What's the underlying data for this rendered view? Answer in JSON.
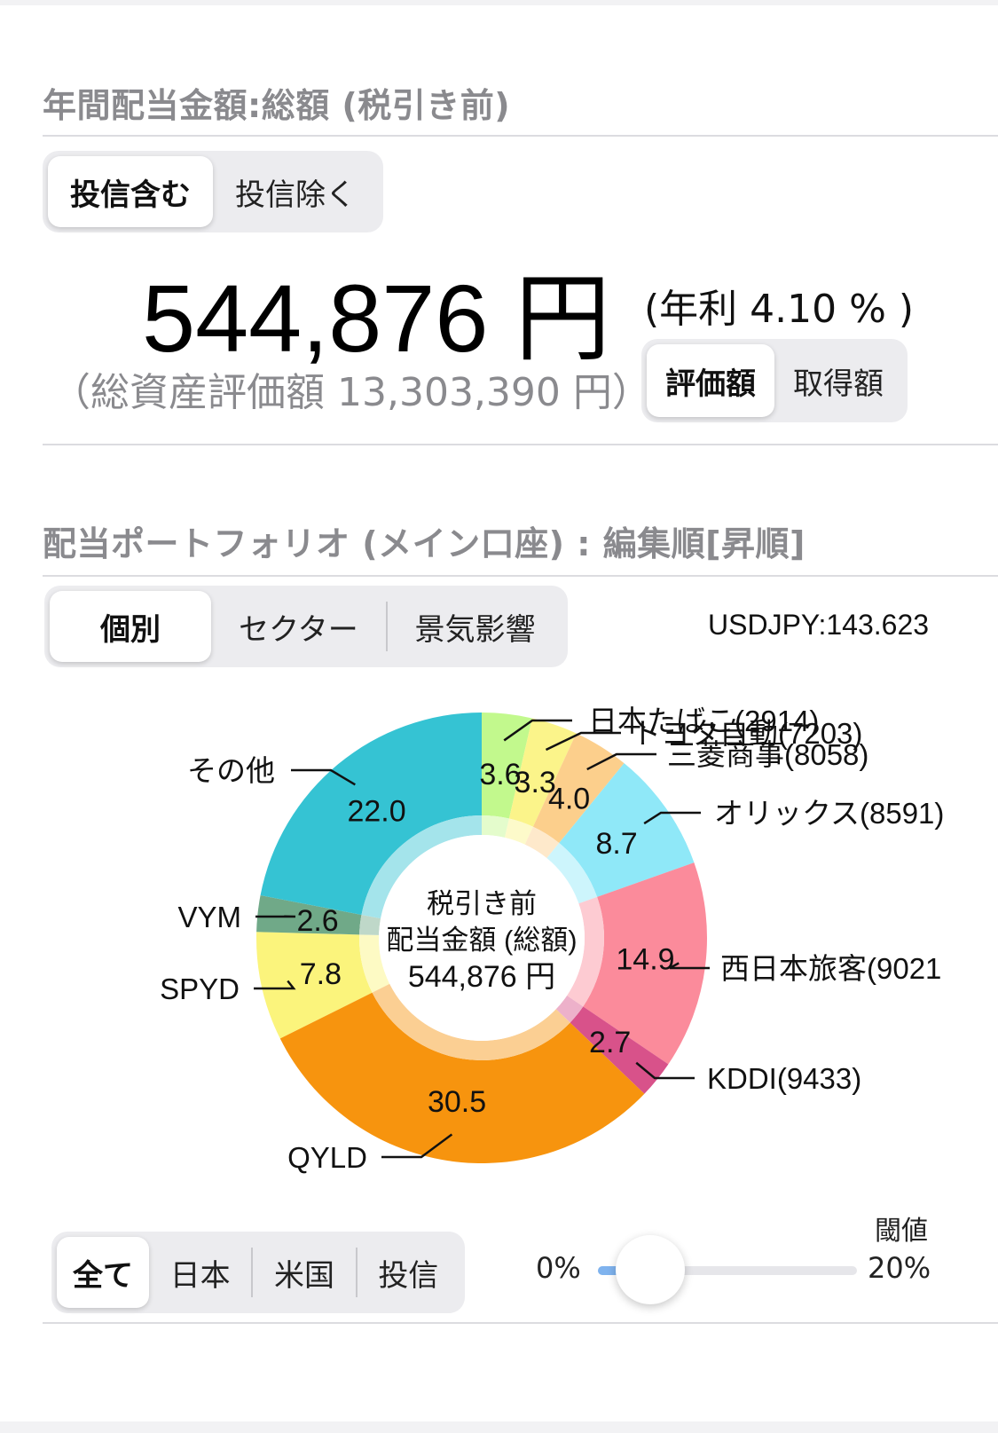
{
  "header": {
    "annual_title": "年間配当金額:総額 (税引き前)",
    "fund_toggle": [
      "投信含む",
      "投信除く"
    ],
    "amount": "544,876 円",
    "yield": "(年利 4.10 % )",
    "total_assets": "（総資産評価額 13,303,390 円）",
    "basis_toggle": [
      "評価額",
      "取得額"
    ]
  },
  "portfolio": {
    "title": "配当ポートフォリオ (メイン口座) : 編集順[昇順]",
    "view_tabs": [
      "個別",
      "セクター",
      "景気影響"
    ],
    "fx_rate": "USDJPY:143.623"
  },
  "filter": {
    "region_tabs": [
      "全て",
      "日本",
      "米国",
      "投信"
    ],
    "threshold_label": "閾値",
    "slider_min_label": "0%",
    "slider_max_label": "20%",
    "slider_value_fraction": 0.0
  },
  "chart_data": {
    "type": "pie",
    "donut": true,
    "center_text": [
      "税引き前",
      "配当金額 (総額)",
      "544,876 円"
    ],
    "categories": [
      "日本たばこ(2914)",
      "トヨタ自動(7203)",
      "三菱商事(8058)",
      "オリックス(8591)",
      "西日本旅客(9021",
      "KDDI(9433)",
      "QYLD",
      "SPYD",
      "VYM",
      "その他"
    ],
    "values": [
      3.6,
      3.3,
      4.0,
      8.7,
      14.9,
      2.7,
      30.5,
      7.8,
      2.6,
      22.0
    ],
    "value_labels": [
      "3.6",
      "3.3",
      "4.0",
      "8.7",
      "14.9",
      "2.7",
      "30.5",
      "7.8",
      "2.6",
      "22.0"
    ],
    "colors": [
      "#c2f98d",
      "#fbf48a",
      "#fccf8c",
      "#8fe8f8",
      "#fb8b9b",
      "#d8528a",
      "#f7940e",
      "#fbf47c",
      "#70a988",
      "#35c3d3"
    ],
    "unit": "%"
  }
}
